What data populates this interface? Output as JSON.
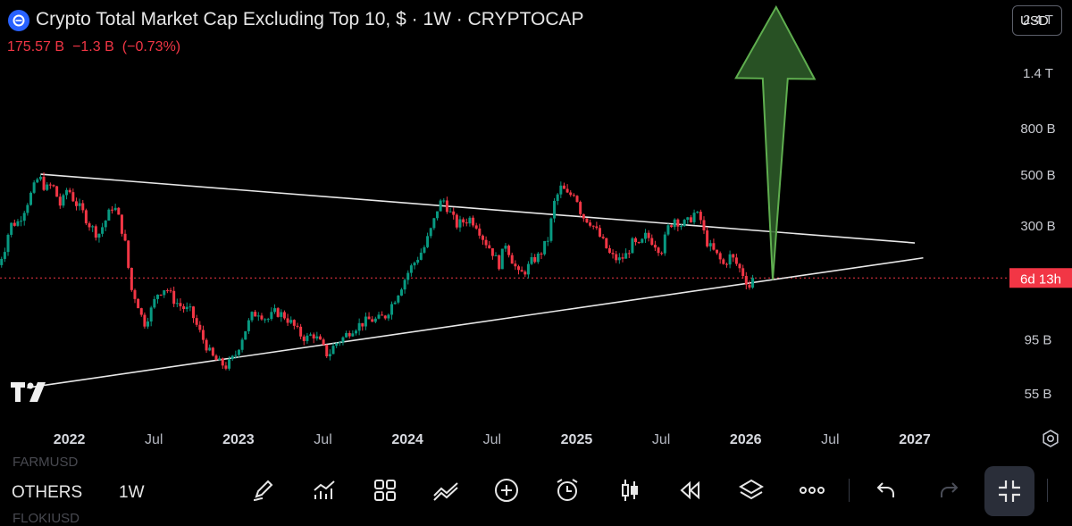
{
  "header": {
    "title": "Crypto Total Market Cap Excluding Top 10, $ · 1W · CRYPTOCAP",
    "price": "175.57 B",
    "change": "−1.3 B",
    "change_pct": "(−0.73%)",
    "down_color": "#f23645",
    "up_color": "#089981"
  },
  "currency_button": "USD",
  "symbol_bar": {
    "symbol": "OTHERS",
    "interval": "1W",
    "ghost_top": "FARMUSD",
    "ghost_bottom": "FLOKIUSD"
  },
  "toolbar_icons": [
    "pencil-icon",
    "indicators-icon",
    "layout-grid-icon",
    "compare-icon",
    "plus-circle-icon",
    "alarm-icon",
    "candles-icon",
    "replay-icon",
    "layers-icon",
    "more-icon",
    "undo-icon",
    "redo-icon",
    "fullscreen-exit-icon"
  ],
  "chart_data": {
    "type": "candlestick",
    "title": "Crypto Total Market Cap Excluding Top 10, $ · 1W · CRYPTOCAP",
    "y_scale": "log",
    "y_unit": "USD",
    "ylim": [
      42,
      2900
    ],
    "y_ticks": [
      {
        "label": "2.4 T",
        "value": 2400
      },
      {
        "label": "1.4 T",
        "value": 1400
      },
      {
        "label": "800 B",
        "value": 800
      },
      {
        "label": "500 B",
        "value": 500
      },
      {
        "label": "300 B",
        "value": 300
      },
      {
        "label": "95 B",
        "value": 95
      },
      {
        "label": "55 B",
        "value": 55
      }
    ],
    "x_ticks": [
      {
        "label": "2022",
        "t": 2022.0,
        "bold": true
      },
      {
        "label": "Jul",
        "t": 2022.5,
        "bold": false
      },
      {
        "label": "2023",
        "t": 2023.0,
        "bold": true
      },
      {
        "label": "Jul",
        "t": 2023.5,
        "bold": false
      },
      {
        "label": "2024",
        "t": 2024.0,
        "bold": true
      },
      {
        "label": "Jul",
        "t": 2024.5,
        "bold": false
      },
      {
        "label": "2025",
        "t": 2025.0,
        "bold": true
      },
      {
        "label": "Jul",
        "t": 2025.5,
        "bold": false
      },
      {
        "label": "2026",
        "t": 2026.0,
        "bold": true
      },
      {
        "label": "Jul",
        "t": 2026.5,
        "bold": false
      },
      {
        "label": "2027",
        "t": 2027.0,
        "bold": true
      }
    ],
    "xlim": [
      2021.59,
      2027.56
    ],
    "last_price": 175.57,
    "countdown_label": "6d 13h",
    "trendlines": [
      {
        "name": "upper-resistance",
        "start": [
          2021.83,
          500
        ],
        "end": [
          2027.0,
          250
        ]
      },
      {
        "name": "lower-support",
        "start": [
          2021.75,
          58
        ],
        "end": [
          2027.05,
          215
        ]
      }
    ],
    "arrow_target": [
      2026.18,
      2700
    ],
    "price_path": [
      [
        2021.58,
        200
      ],
      [
        2021.62,
        240
      ],
      [
        2021.65,
        300
      ],
      [
        2021.7,
        310
      ],
      [
        2021.74,
        360
      ],
      [
        2021.78,
        420
      ],
      [
        2021.82,
        490
      ],
      [
        2021.86,
        430
      ],
      [
        2021.9,
        450
      ],
      [
        2021.95,
        360
      ],
      [
        2021.99,
        440
      ],
      [
        2022.03,
        380
      ],
      [
        2022.07,
        350
      ],
      [
        2022.12,
        300
      ],
      [
        2022.17,
        270
      ],
      [
        2022.22,
        320
      ],
      [
        2022.26,
        370
      ],
      [
        2022.3,
        310
      ],
      [
        2022.34,
        230
      ],
      [
        2022.36,
        160
      ],
      [
        2022.4,
        140
      ],
      [
        2022.44,
        110
      ],
      [
        2022.48,
        125
      ],
      [
        2022.52,
        150
      ],
      [
        2022.57,
        160
      ],
      [
        2022.62,
        140
      ],
      [
        2022.67,
        130
      ],
      [
        2022.72,
        125
      ],
      [
        2022.75,
        110
      ],
      [
        2022.79,
        95
      ],
      [
        2022.84,
        80
      ],
      [
        2022.88,
        75
      ],
      [
        2022.93,
        72
      ],
      [
        2022.98,
        80
      ],
      [
        2023.03,
        100
      ],
      [
        2023.08,
        120
      ],
      [
        2023.12,
        125
      ],
      [
        2023.17,
        115
      ],
      [
        2023.22,
        125
      ],
      [
        2023.27,
        120
      ],
      [
        2023.32,
        110
      ],
      [
        2023.36,
        100
      ],
      [
        2023.4,
        95
      ],
      [
        2023.44,
        100
      ],
      [
        2023.48,
        92
      ],
      [
        2023.53,
        80
      ],
      [
        2023.57,
        90
      ],
      [
        2023.62,
        96
      ],
      [
        2023.67,
        105
      ],
      [
        2023.72,
        110
      ],
      [
        2023.77,
        115
      ],
      [
        2023.82,
        115
      ],
      [
        2023.87,
        120
      ],
      [
        2023.92,
        140
      ],
      [
        2023.96,
        160
      ],
      [
        2024.01,
        190
      ],
      [
        2024.05,
        210
      ],
      [
        2024.1,
        240
      ],
      [
        2024.15,
        300
      ],
      [
        2024.18,
        360
      ],
      [
        2024.21,
        390
      ],
      [
        2024.25,
        340
      ],
      [
        2024.29,
        300
      ],
      [
        2024.33,
        310
      ],
      [
        2024.37,
        320
      ],
      [
        2024.41,
        300
      ],
      [
        2024.45,
        260
      ],
      [
        2024.5,
        230
      ],
      [
        2024.54,
        200
      ],
      [
        2024.58,
        250
      ],
      [
        2024.62,
        210
      ],
      [
        2024.66,
        180
      ],
      [
        2024.7,
        190
      ],
      [
        2024.74,
        210
      ],
      [
        2024.78,
        220
      ],
      [
        2024.83,
        260
      ],
      [
        2024.87,
        380
      ],
      [
        2024.91,
        440
      ],
      [
        2024.95,
        400
      ],
      [
        2024.99,
        420
      ],
      [
        2025.03,
        330
      ],
      [
        2025.08,
        310
      ],
      [
        2025.12,
        280
      ],
      [
        2025.16,
        250
      ],
      [
        2025.2,
        220
      ],
      [
        2025.25,
        210
      ],
      [
        2025.29,
        220
      ],
      [
        2025.33,
        250
      ],
      [
        2025.37,
        240
      ],
      [
        2025.41,
        270
      ],
      [
        2025.46,
        250
      ],
      [
        2025.5,
        230
      ],
      [
        2025.54,
        290
      ],
      [
        2025.58,
        320
      ],
      [
        2025.62,
        300
      ],
      [
        2025.66,
        310
      ],
      [
        2025.7,
        340
      ],
      [
        2025.74,
        310
      ],
      [
        2025.76,
        260
      ],
      [
        2025.79,
        240
      ],
      [
        2025.83,
        220
      ],
      [
        2025.87,
        200
      ],
      [
        2025.91,
        220
      ],
      [
        2025.95,
        200
      ],
      [
        2025.99,
        180
      ],
      [
        2026.02,
        160
      ],
      [
        2026.06,
        175.57
      ]
    ]
  }
}
